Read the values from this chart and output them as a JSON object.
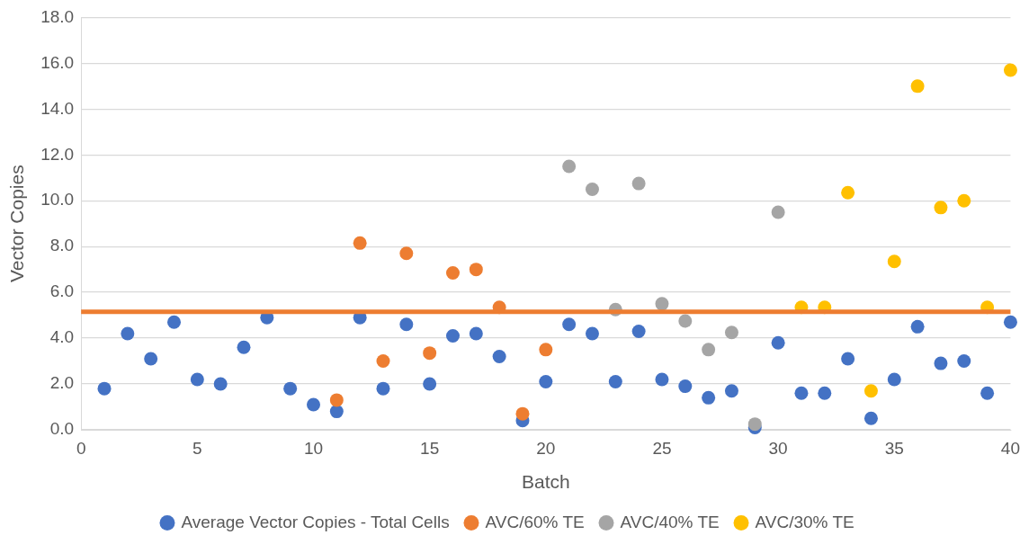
{
  "chart_data": {
    "type": "scatter",
    "xlabel": "Batch",
    "ylabel": "Vector Copies",
    "xlim": [
      0,
      40
    ],
    "xticks": [
      0,
      5,
      10,
      15,
      20,
      25,
      30,
      35,
      40
    ],
    "ylim": [
      0,
      18
    ],
    "yticks": [
      {
        "value": 0,
        "label": "0.0"
      },
      {
        "value": 2,
        "label": "2.0"
      },
      {
        "value": 4,
        "label": "4.0"
      },
      {
        "value": 6,
        "label": "6.0"
      },
      {
        "value": 8,
        "label": "8.0"
      },
      {
        "value": 10,
        "label": "10.0"
      },
      {
        "value": 12,
        "label": "12.0"
      },
      {
        "value": 14,
        "label": "14.0"
      },
      {
        "value": 16,
        "label": "16.0"
      },
      {
        "value": 18,
        "label": "18.0"
      }
    ],
    "grid": "y",
    "legend": "bottom",
    "marker": "circle",
    "series": [
      {
        "name": "Average Vector Copies - Total Cells",
        "color": "#4472c4",
        "x": [
          1,
          2,
          3,
          4,
          5,
          6,
          7,
          8,
          9,
          10,
          11,
          12,
          13,
          14,
          15,
          16,
          17,
          18,
          19,
          20,
          21,
          22,
          23,
          24,
          25,
          26,
          27,
          28,
          29,
          30,
          31,
          32,
          33,
          34,
          35,
          36,
          37,
          38,
          39,
          40
        ],
        "values": [
          1.8,
          4.2,
          3.1,
          4.7,
          2.2,
          2.0,
          3.6,
          4.9,
          1.8,
          1.1,
          0.8,
          4.9,
          1.8,
          4.6,
          2.0,
          4.1,
          4.2,
          3.2,
          0.4,
          2.1,
          4.6,
          4.2,
          2.1,
          4.3,
          2.2,
          1.9,
          1.4,
          1.7,
          0.1,
          3.8,
          1.6,
          1.6,
          3.1,
          0.5,
          2.2,
          4.5,
          2.9,
          3.0,
          1.6,
          4.7
        ]
      },
      {
        "name": "AVC/60% TE",
        "color": "#ed7d31",
        "x": [
          11,
          12,
          13,
          14,
          15,
          16,
          17,
          18,
          19,
          20
        ],
        "values": [
          1.3,
          8.15,
          3.0,
          7.7,
          3.35,
          6.85,
          7.0,
          5.35,
          0.7,
          3.5
        ]
      },
      {
        "name": "AVC/40% TE",
        "color": "#a5a5a5",
        "x": [
          21,
          22,
          23,
          24,
          25,
          26,
          27,
          28,
          29,
          30
        ],
        "values": [
          11.5,
          10.5,
          5.25,
          10.75,
          5.5,
          4.75,
          3.5,
          4.25,
          0.25,
          9.5
        ]
      },
      {
        "name": "AVC/30% TE",
        "color": "#ffc000",
        "x": [
          31,
          32,
          33,
          34,
          35,
          36,
          37,
          38,
          39,
          40
        ],
        "values": [
          5.35,
          5.35,
          10.35,
          1.7,
          7.35,
          15.0,
          9.7,
          10.0,
          5.35,
          15.7
        ]
      }
    ],
    "ref_lines": [
      {
        "axis": "y",
        "value": 5.15,
        "color": "#ed7d31"
      }
    ]
  }
}
